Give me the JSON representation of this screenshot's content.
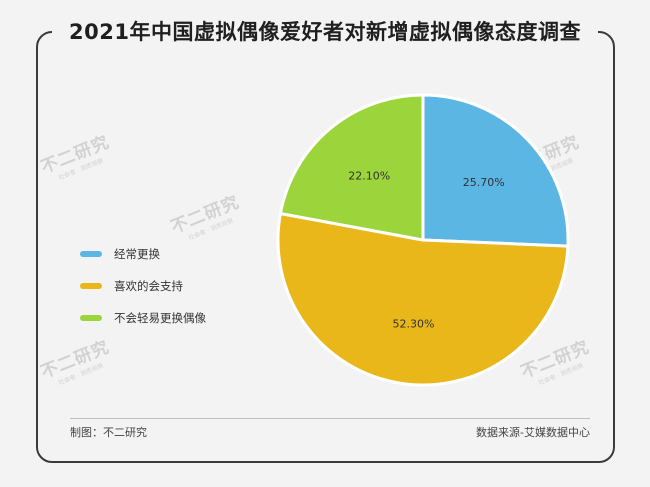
{
  "title": "2021年中国虚拟偶像爱好者对新增虚拟偶像态度调查",
  "credit_left": "制图：不二研究",
  "credit_right": "数据来源-艾媒数据中心",
  "watermarks": [
    {
      "main": "不二研究",
      "sub": "社会者 · 洞悉观察"
    },
    {
      "main": "不二研究",
      "sub": "社会者 · 洞悉观察"
    },
    {
      "main": "不二研究",
      "sub": "社会者 · 洞悉观察"
    },
    {
      "main": "不二研究",
      "sub": "社会者 · 洞悉观察"
    },
    {
      "main": "不二研究",
      "sub": "社会者 · 洞悉观察"
    }
  ],
  "chart_data": {
    "type": "pie",
    "slices": [
      {
        "label": "经常更换",
        "value": 25.7,
        "value_label": "25.70%",
        "color": "#5bb6e3"
      },
      {
        "label": "喜欢的会支持",
        "value": 52.3,
        "value_label": "52.30%",
        "color": "#eab71a"
      },
      {
        "label": "不会轻易更换偶像",
        "value": 22.1,
        "value_label": "22.10%",
        "color": "#9bd53b"
      }
    ],
    "start_angle_deg": 0,
    "direction": "clockwise",
    "legend_position": "left",
    "slice_border_color": "#ffffff"
  }
}
